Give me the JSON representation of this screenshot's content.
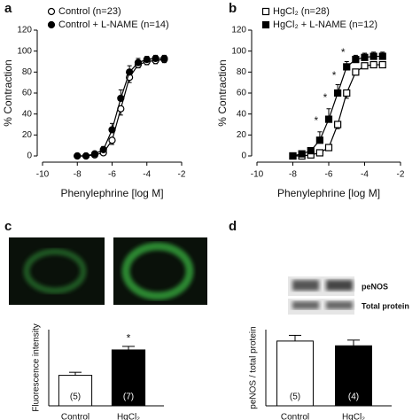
{
  "chart_data": [
    {
      "type": "line",
      "label": "a",
      "xlabel": "Phenylephrine [log M]",
      "ylabel": "% Contraction",
      "xlim": [
        -10,
        -2
      ],
      "xticks": [
        -10,
        -8,
        -6,
        -4,
        -2
      ],
      "ylim": [
        0,
        120
      ],
      "yticks": [
        0,
        20,
        40,
        60,
        80,
        100,
        120
      ],
      "legend": "upper left",
      "x": [
        -8,
        -7.5,
        -7,
        -6.5,
        -6,
        -5.5,
        -5,
        -4.5,
        -4,
        -3.5,
        -3
      ],
      "series": [
        {
          "name": "Control (n=23)",
          "color": "#000000",
          "marker": "circle",
          "filled": false,
          "values": [
            0,
            0,
            1,
            3,
            15,
            45,
            75,
            87,
            90,
            91,
            92
          ],
          "errors": [
            0,
            0,
            1,
            2,
            4,
            6,
            5,
            3,
            3,
            3,
            3
          ]
        },
        {
          "name": "Control + L-NAME (n=14)",
          "color": "#000000",
          "marker": "circle",
          "filled": true,
          "values": [
            0,
            0,
            2,
            6,
            25,
            55,
            80,
            89,
            92,
            93,
            93
          ],
          "errors": [
            0,
            0,
            1,
            3,
            6,
            8,
            6,
            4,
            3,
            3,
            3
          ]
        }
      ]
    },
    {
      "type": "line",
      "label": "b",
      "xlabel": "Phenylephrine [log M]",
      "ylabel": "% Contraction",
      "xlim": [
        -10,
        -2
      ],
      "xticks": [
        -10,
        -8,
        -6,
        -4,
        -2
      ],
      "ylim": [
        0,
        120
      ],
      "yticks": [
        0,
        20,
        40,
        60,
        80,
        100,
        120
      ],
      "legend": "upper left",
      "x": [
        -8,
        -7.5,
        -7,
        -6.5,
        -6,
        -5.5,
        -5,
        -4.5,
        -4,
        -3.5,
        -3
      ],
      "series": [
        {
          "name": "HgCl₂ (n=28)",
          "color": "#000000",
          "marker": "square",
          "filled": false,
          "values": [
            0,
            0,
            1,
            3,
            8,
            30,
            60,
            80,
            86,
            87,
            87
          ],
          "errors": [
            0,
            0,
            1,
            1,
            2,
            4,
            5,
            3,
            2,
            2,
            2
          ]
        },
        {
          "name": "HgCl₂ + L-NAME (n=12)",
          "color": "#000000",
          "marker": "square",
          "filled": true,
          "values": [
            0,
            2,
            5,
            15,
            35,
            60,
            85,
            92,
            94,
            95,
            95
          ],
          "errors": [
            0,
            1,
            3,
            8,
            10,
            8,
            5,
            4,
            4,
            4,
            4
          ]
        }
      ],
      "annotations": [
        {
          "text": "*",
          "x": -6.5,
          "y": 33
        },
        {
          "text": "*",
          "x": -6,
          "y": 55
        },
        {
          "text": "*",
          "x": -5.5,
          "y": 76
        },
        {
          "text": "*",
          "x": -5,
          "y": 98
        }
      ]
    },
    {
      "type": "bar",
      "label": "c",
      "ylabel": "Fluorescence intensity",
      "ylim": [
        0,
        15
      ],
      "categories": [
        "Control",
        "HgCl₂"
      ],
      "values": [
        6,
        11
      ],
      "errors": [
        0.6,
        0.7
      ],
      "colors": [
        "#ffffff",
        "#000000"
      ],
      "n_labels": [
        "(5)",
        "(7)"
      ],
      "annotations": [
        {
          "text": "*",
          "x": "HgCl₂",
          "y": 13.2
        }
      ]
    },
    {
      "type": "bar",
      "label": "d",
      "ylabel": "peNOS / total protein",
      "ylim": [
        0,
        40
      ],
      "categories": [
        "Control",
        "HgCl₂"
      ],
      "values": [
        34,
        31.5
      ],
      "errors": [
        3,
        3
      ],
      "colors": [
        "#ffffff",
        "#000000"
      ],
      "n_labels": [
        "(5)",
        "(4)"
      ],
      "blot_labels": [
        "peNOS",
        "Total protein"
      ]
    }
  ]
}
